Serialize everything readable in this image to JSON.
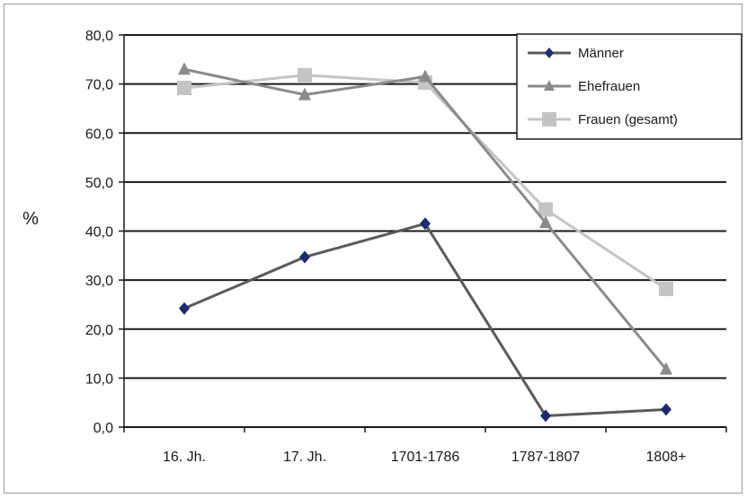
{
  "chart_data": {
    "type": "line",
    "ylabel": "%",
    "ylim": [
      0,
      80
    ],
    "yticks": [
      "0,0",
      "10,0",
      "20,0",
      "30,0",
      "40,0",
      "50,0",
      "60,0",
      "70,0",
      "80,0"
    ],
    "categories": [
      "16. Jh.",
      "17. Jh.",
      "1701-1786",
      "1787-1807",
      "1808+"
    ],
    "grid": true,
    "legend_position": "top-right",
    "series": [
      {
        "name": "Männer",
        "marker": "diamond",
        "color": "#5a5a5a",
        "marker_color": "#1f2a6b",
        "values": [
          24.2,
          34.7,
          41.5,
          2.3,
          3.6
        ]
      },
      {
        "name": "Ehefrauen",
        "marker": "triangle",
        "color": "#8a8a8a",
        "marker_color": "#8a8a8a",
        "values": [
          73.0,
          67.8,
          71.5,
          41.7,
          11.8
        ]
      },
      {
        "name": "Frauen (gesamt)",
        "marker": "square",
        "color": "#c4c4c4",
        "marker_color": "#c4c4c4",
        "values": [
          69.2,
          71.8,
          70.3,
          44.4,
          28.2
        ]
      }
    ]
  }
}
